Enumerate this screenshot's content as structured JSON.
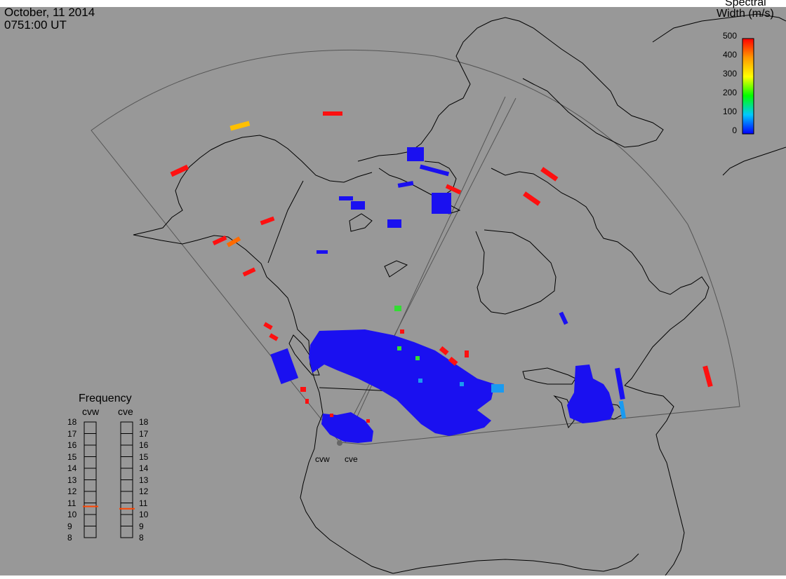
{
  "header": {
    "date": "October, 11 2014",
    "time": "0751:00 UT"
  },
  "legend": {
    "title_line1": "Spectral",
    "title_line2": "Width (m/s)",
    "ticks": [
      "500",
      "400",
      "300",
      "200",
      "100",
      "0"
    ],
    "range": [
      0,
      500
    ],
    "colors": [
      "#0000ff",
      "#00c8ff",
      "#00ff00",
      "#ffff00",
      "#ff9900",
      "#ff0000"
    ]
  },
  "frequency_panel": {
    "title": "Frequency",
    "radars": [
      {
        "name": "cvw",
        "value": 10.7
      },
      {
        "name": "cve",
        "value": 10.5
      }
    ],
    "scale": [
      "18",
      "17",
      "16",
      "15",
      "14",
      "13",
      "12",
      "11",
      "10",
      "9",
      "8"
    ],
    "indicator_color": "#ff4400"
  },
  "radar_sites": [
    {
      "name": "cvw"
    },
    {
      "name": "cve"
    }
  ],
  "colors": {
    "background": "#989898",
    "coastline": "#000000",
    "fov_outline": "#555555",
    "echo_blue": "#1a10f0",
    "echo_light_blue": "#1a9af0",
    "echo_red": "#ff1010",
    "echo_orange": "#ff6a00",
    "echo_yellow": "#ffc000",
    "echo_green": "#33dd33"
  }
}
